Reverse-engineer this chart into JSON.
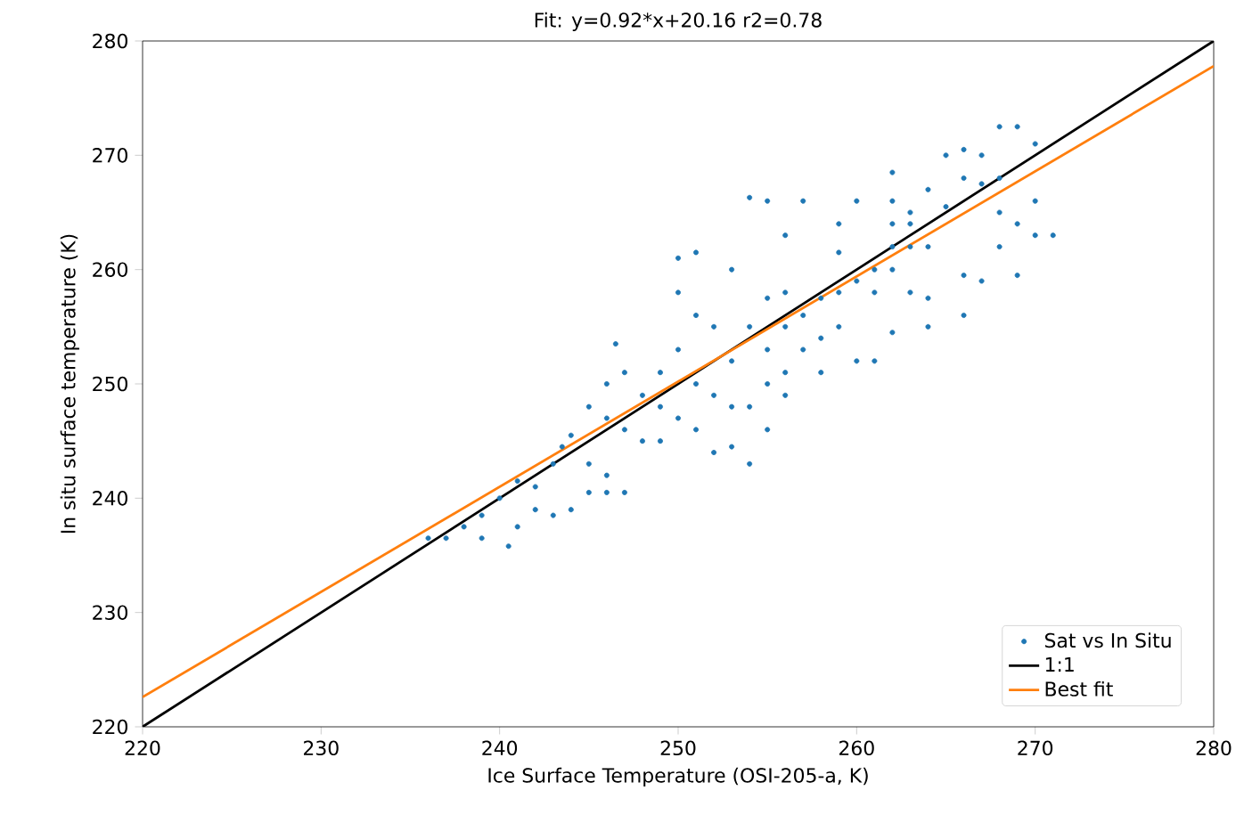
{
  "chart_data": {
    "type": "scatter",
    "title": "Fit: y=0.92*x+20.16  r2=0.78",
    "xlabel": "Ice Surface Temperature (OSI-205-a, K)",
    "ylabel": "In situ surface temperature (K)",
    "xlim": [
      220,
      280
    ],
    "ylim": [
      220,
      280
    ],
    "xticks": [
      220,
      230,
      240,
      250,
      260,
      270,
      280
    ],
    "yticks": [
      220,
      230,
      240,
      250,
      260,
      270,
      280
    ],
    "grid": false,
    "legend": "bottom right",
    "series": [
      {
        "name": "Sat vs In Situ",
        "marker": "circle",
        "color": "#1f77b4",
        "x": [
          237,
          238,
          239,
          240,
          241,
          240.5,
          242,
          243,
          243.5,
          244,
          245,
          246,
          246,
          245,
          244,
          242,
          247,
          248,
          246,
          245,
          246,
          246.5,
          247,
          248,
          249,
          249,
          250,
          251,
          252,
          253,
          250,
          251,
          254,
          255,
          256,
          253,
          255,
          254,
          256,
          257,
          258,
          252,
          251,
          250,
          251,
          250,
          253,
          255,
          256,
          258,
          259,
          260,
          259,
          261,
          262,
          263,
          263,
          262,
          259,
          256,
          257,
          255,
          254,
          260,
          262,
          264,
          262,
          266,
          268,
          265,
          267,
          268,
          269,
          266,
          270,
          270,
          268,
          269,
          270,
          271,
          268,
          264,
          262,
          261,
          263,
          264,
          267,
          266,
          264,
          262,
          261,
          260,
          256,
          254,
          253,
          249,
          247,
          241,
          243,
          239,
          236,
          269,
          266,
          259,
          257,
          258,
          255,
          252,
          263,
          265,
          267
        ],
        "values": [
          236.5,
          237.5,
          238.5,
          240,
          241.5,
          235.8,
          241,
          243,
          244.5,
          245.5,
          240.5,
          240.5,
          242,
          243,
          239,
          239,
          246,
          245,
          247,
          248,
          250,
          253.5,
          251,
          249,
          248,
          251,
          253,
          250,
          249,
          248,
          247,
          246,
          248,
          250,
          249,
          252,
          253,
          255,
          255,
          256,
          254,
          255,
          256,
          258,
          261.5,
          261,
          260,
          257.5,
          258,
          257.5,
          258,
          259,
          261.5,
          260,
          262,
          262,
          264,
          264,
          264,
          263,
          266,
          266,
          266.3,
          266,
          266,
          267,
          268.5,
          268,
          268,
          270,
          270,
          272.5,
          272.5,
          270.5,
          271,
          266,
          265,
          264,
          263,
          263,
          262,
          262,
          260,
          258,
          258,
          257.5,
          259,
          259.5,
          255,
          254.5,
          252,
          252,
          251,
          243,
          244.5,
          245,
          240.5,
          237.5,
          238.5,
          236.5,
          236.5,
          259.5,
          256,
          255,
          253,
          251,
          246,
          244,
          265,
          265.5,
          267.5
        ]
      },
      {
        "name": "1:1",
        "type": "line",
        "marker": "none",
        "color": "#000000",
        "x": [
          220,
          280
        ],
        "values": [
          220,
          280
        ]
      },
      {
        "name": "Best fit",
        "type": "line",
        "marker": "none",
        "color": "#ff7f0e",
        "x": [
          220,
          280
        ],
        "values": [
          222.6,
          277.8
        ]
      }
    ]
  }
}
